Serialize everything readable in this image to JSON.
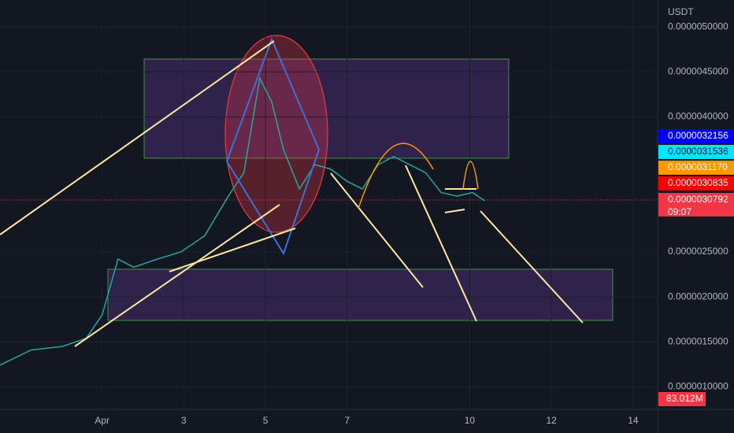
{
  "unit": "USDT",
  "chart_data": {
    "type": "line",
    "color": "#26a69a",
    "x": [
      -1.51,
      -0.74,
      0.03,
      0.61,
      1.0,
      1.39,
      1.77,
      2.35,
      2.93,
      3.51,
      4.09,
      4.47,
      4.86,
      5.15,
      5.44,
      5.83,
      6.21,
      6.6,
      6.98,
      7.37,
      7.76,
      8.14,
      8.53,
      8.92,
      9.3,
      9.69,
      10.07,
      10.36
    ],
    "values": [
      1.24e-06,
      1.41e-06,
      1.45e-06,
      1.54e-06,
      1.8e-06,
      2.42e-06,
      2.33e-06,
      2.42e-06,
      2.5e-06,
      2.68e-06,
      3.12e-06,
      3.38e-06,
      4.43e-06,
      4.17e-06,
      3.64e-06,
      3.2e-06,
      3.47e-06,
      3.42e-06,
      3.29e-06,
      3.2e-06,
      3.47e-06,
      3.56e-06,
      3.47e-06,
      3.38e-06,
      3.16e-06,
      3.12e-06,
      3.16e-06,
      3.07e-06
    ],
    "xlim": [
      -1.5,
      14.6
    ],
    "ylim": [
      7.5e-07,
      5.3e-06
    ],
    "yticks": [
      {
        "value": 5e-06,
        "label": "0.0000050000"
      },
      {
        "value": 4.5e-06,
        "label": "0.0000045000"
      },
      {
        "value": 4e-06,
        "label": "0.0000040000"
      },
      {
        "value": 2.5e-06,
        "label": "0.0000025000"
      },
      {
        "value": 2e-06,
        "label": "0.0000020000"
      },
      {
        "value": 1.5e-06,
        "label": "0.0000015000"
      },
      {
        "value": 1e-06,
        "label": "0.0000010000"
      }
    ],
    "xticks": [
      {
        "value": 1,
        "label": "Apr"
      },
      3,
      5,
      7,
      10,
      12,
      14
    ]
  },
  "badges": [
    {
      "label": "0.0000032156",
      "color": "#0000ff",
      "text_color": "#ffffff"
    },
    {
      "label": "0.0000031536",
      "color": "#00e5ff",
      "text_color": "#131722"
    },
    {
      "label": "0.0000031170",
      "color": "#ff9800",
      "text_color": "#ffffff"
    },
    {
      "label": "0.0000030835",
      "color": "#ff0000",
      "text_color": "#ffffff"
    },
    {
      "label": "0.0000030792",
      "color": "#f23645",
      "text_color": "#ffffff"
    }
  ],
  "countdown": "09:07",
  "volume_badge": "83.012M"
}
